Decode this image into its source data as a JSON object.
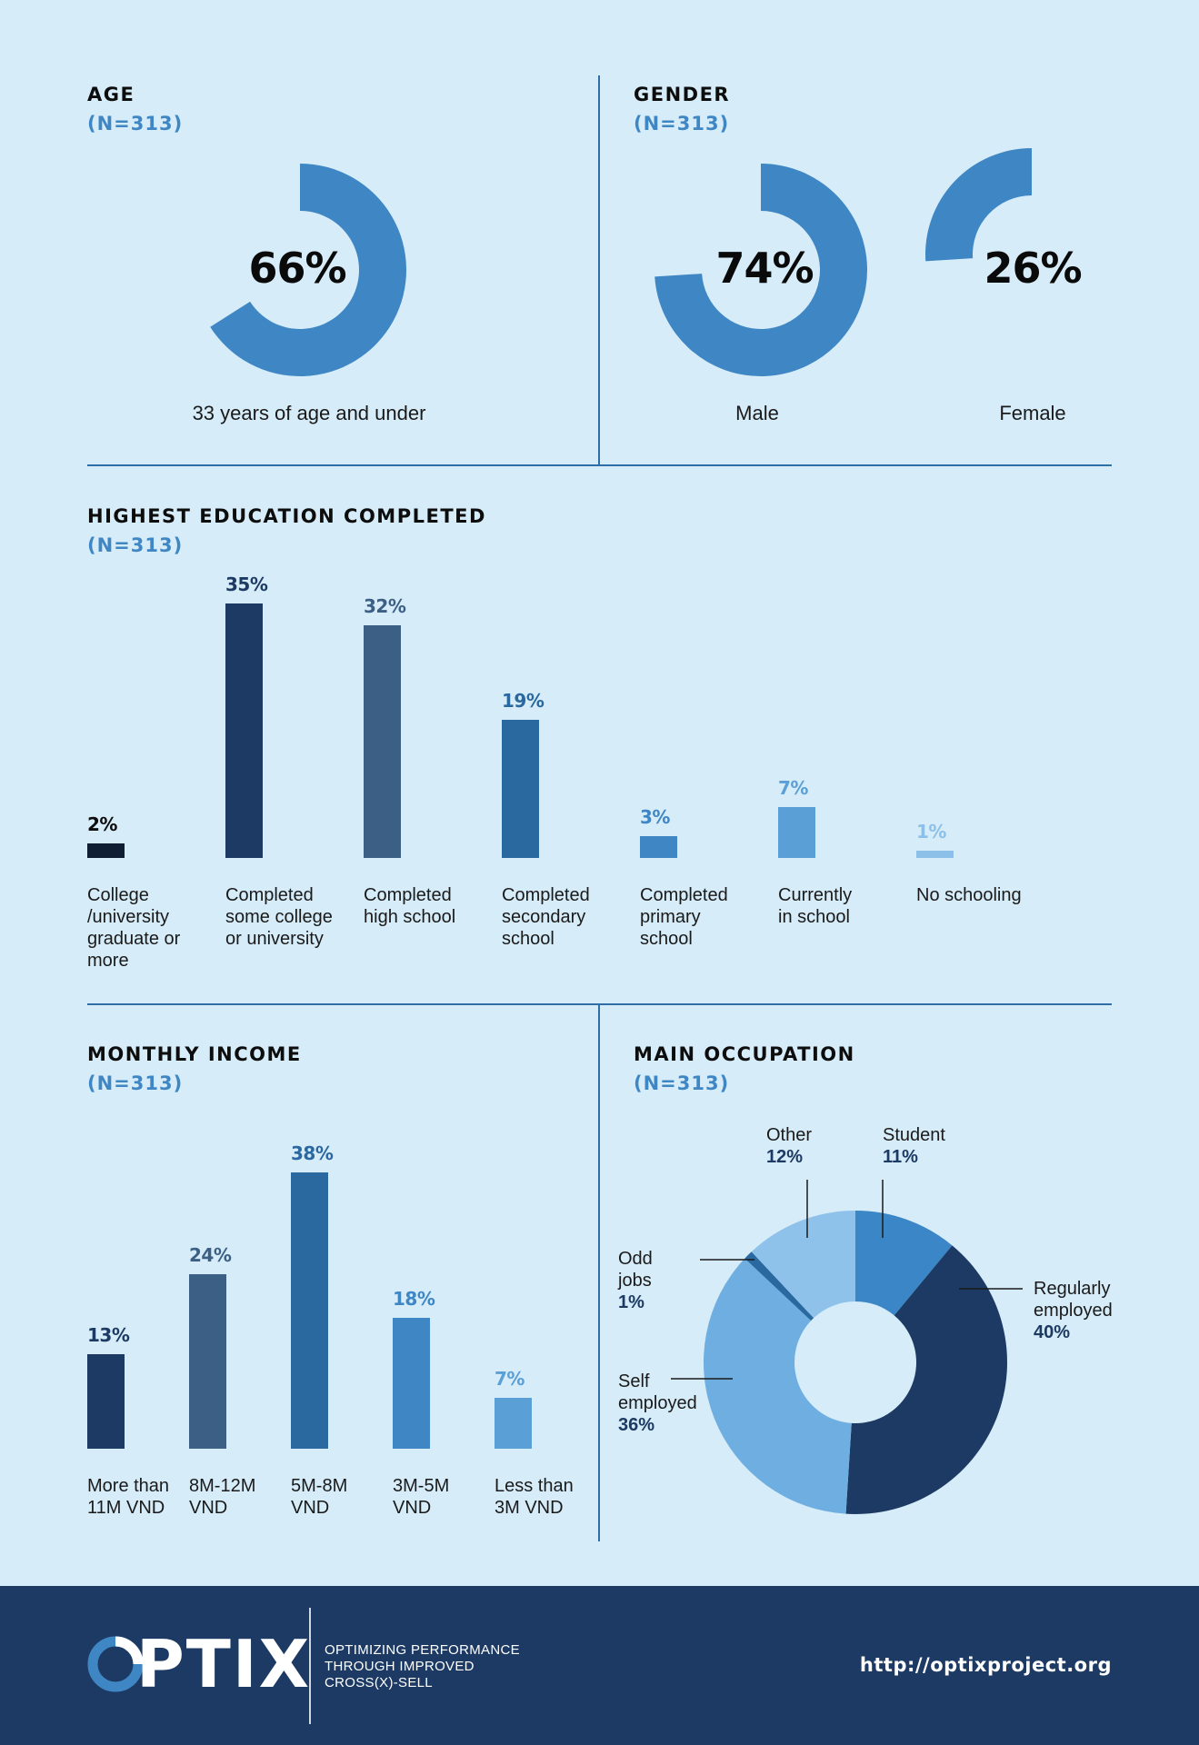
{
  "age": {
    "title": "AGE",
    "n": "(N=313)",
    "pct_label": "66%",
    "value": 66,
    "caption": "33 years of age and under"
  },
  "gender": {
    "title": "GENDER",
    "n": "(N=313)",
    "male": {
      "pct_label": "74%",
      "value": 74,
      "caption": "Male"
    },
    "female": {
      "pct_label": "26%",
      "value": 26,
      "caption": "Female"
    }
  },
  "education": {
    "title": "HIGHEST EDUCATION COMPLETED",
    "n": "(N=313)"
  },
  "income": {
    "title": "MONTHLY INCOME",
    "n": "(N=313)"
  },
  "occupation": {
    "title": "MAIN OCCUPATION",
    "n": "(N=313)"
  },
  "colors": {
    "background": "#d6ecf8",
    "accent": "#3f86c4",
    "navy": "#1c3a63",
    "footer": "#1c3a63"
  },
  "chart_data": [
    {
      "type": "pie",
      "title": "AGE",
      "categories": [
        "33 years of age and under"
      ],
      "values": [
        66
      ]
    },
    {
      "type": "pie",
      "title": "GENDER",
      "categories": [
        "Male",
        "Female"
      ],
      "values": [
        74,
        26
      ]
    },
    {
      "type": "bar",
      "title": "HIGHEST EDUCATION COMPLETED",
      "categories": [
        "College /university graduate or more",
        "Completed some college or university",
        "Completed high school",
        "Completed secondary school",
        "Completed primary school",
        "Currently in school",
        "No schooling"
      ],
      "category_lines": [
        [
          "College",
          "/university",
          "graduate or",
          "more"
        ],
        [
          "Completed",
          "some college",
          "or university"
        ],
        [
          "Completed",
          "high school"
        ],
        [
          "Completed",
          "secondary",
          "school"
        ],
        [
          "Completed",
          "primary",
          "school"
        ],
        [
          "Currently",
          "in school"
        ],
        [
          "No schooling"
        ]
      ],
      "values": [
        2,
        35,
        32,
        19,
        3,
        7,
        1
      ],
      "value_labels": [
        "2%",
        "35%",
        "32%",
        "19%",
        "3%",
        "7%",
        "1%"
      ],
      "bar_colors": [
        "#0f1e33",
        "#1c3a63",
        "#3b5f85",
        "#2a68a0",
        "#3f86c4",
        "#5aa0d6",
        "#8cc0e8"
      ],
      "label_colors": [
        "#0d0d0d",
        "#1c3a63",
        "#3b5f85",
        "#2a68a0",
        "#3f86c4",
        "#5aa0d6",
        "#8cc0e8"
      ]
    },
    {
      "type": "bar",
      "title": "MONTHLY INCOME",
      "categories": [
        "More than 11M VND",
        "8M-12M VND",
        "5M-8M VND",
        "3M-5M VND",
        "Less than 3M VND"
      ],
      "category_lines": [
        [
          "More than",
          "11M VND"
        ],
        [
          "8M-12M",
          "VND"
        ],
        [
          "5M-8M",
          "VND"
        ],
        [
          "3M-5M",
          "VND"
        ],
        [
          "Less than",
          "3M VND"
        ]
      ],
      "values": [
        13,
        24,
        38,
        18,
        7
      ],
      "value_labels": [
        "13%",
        "24%",
        "38%",
        "18%",
        "7%"
      ],
      "bar_colors": [
        "#1c3a63",
        "#3b5f85",
        "#2a68a0",
        "#3f86c4",
        "#5aa0d6"
      ],
      "label_colors": [
        "#1c3a63",
        "#3b5f85",
        "#2a68a0",
        "#3f86c4",
        "#5aa0d6"
      ]
    },
    {
      "type": "pie",
      "title": "MAIN OCCUPATION",
      "categories": [
        "Student",
        "Regularly employed",
        "Self employed",
        "Odd jobs",
        "Other"
      ],
      "values": [
        11,
        40,
        36,
        1,
        12
      ],
      "value_labels": [
        "11%",
        "40%",
        "36%",
        "1%",
        "12%"
      ],
      "slice_colors": [
        "#3a86c6",
        "#1c3a63",
        "#6eaee0",
        "#2a68a0",
        "#8ec2ea"
      ],
      "label_lines": [
        [
          "Student"
        ],
        [
          "Regularly",
          "employed"
        ],
        [
          "Self",
          "employed"
        ],
        [
          "Odd jobs"
        ],
        [
          "Other"
        ]
      ]
    }
  ],
  "footer": {
    "logo": "OPTIX",
    "tagline": [
      "OPTIMIZING PERFORMANCE",
      "THROUGH IMPROVED",
      "CROSS(X)-SELL"
    ],
    "url": "http://optixproject.org"
  }
}
